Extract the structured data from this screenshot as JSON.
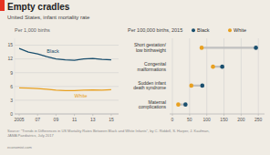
{
  "chart_data": [
    {
      "type": "line",
      "title": "Empty cradles",
      "subtitle": "United States, infant mortality rate",
      "ylabel": "Per 1,000 births",
      "x": [
        2005,
        2006,
        2007,
        2008,
        2009,
        2010,
        2011,
        2012,
        2013,
        2014,
        2015
      ],
      "series": [
        {
          "name": "Black",
          "color": "#1a4f6e",
          "values": [
            14.3,
            13.5,
            13.1,
            12.5,
            12.0,
            11.8,
            11.7,
            12.0,
            12.1,
            11.9,
            11.8
          ]
        },
        {
          "name": "White",
          "color": "#e8a020",
          "values": [
            5.7,
            5.65,
            5.55,
            5.4,
            5.2,
            5.1,
            5.1,
            5.2,
            5.25,
            5.2,
            5.3
          ]
        }
      ],
      "xlim": [
        2004.5,
        2015.8
      ],
      "xticks": [
        2005,
        {
          "value": 2007,
          "label": "07"
        },
        {
          "value": 2009,
          "label": "09"
        },
        {
          "value": 2011,
          "label": "11"
        },
        {
          "value": 2013,
          "label": "13"
        },
        {
          "value": 2015,
          "label": "15"
        }
      ],
      "ylim": [
        0,
        16.5
      ],
      "yticks": [
        0,
        3,
        6,
        9,
        12,
        15
      ],
      "grid": true,
      "annotations": [
        "Source: \"Trends in Differences in US Mortality Rates Between Black and White Infants\", by C. Riddell, S. Harper, J. Kaufman,\nJAMA Paediatrics, July 2017",
        "economist.com"
      ]
    },
    {
      "type": "dot",
      "title": "Per 100,000 births, 2015",
      "orientation": "horizontal",
      "categories": [
        "Short gestation/\nlow birthweight",
        "Congenital\nmalformations",
        "Sudden infant\ndeath syndrome",
        "Maternal\ncomplications"
      ],
      "series": [
        {
          "name": "Black",
          "color": "#1a4f6e",
          "values": [
            243,
            145,
            87,
            38
          ]
        },
        {
          "name": "White",
          "color": "#e8a020",
          "values": [
            85,
            118,
            55,
            17
          ]
        }
      ],
      "xlim": [
        -8,
        268
      ],
      "xticks": [
        0,
        50,
        100,
        150,
        200,
        250
      ],
      "grid": true,
      "legend": "top"
    }
  ]
}
